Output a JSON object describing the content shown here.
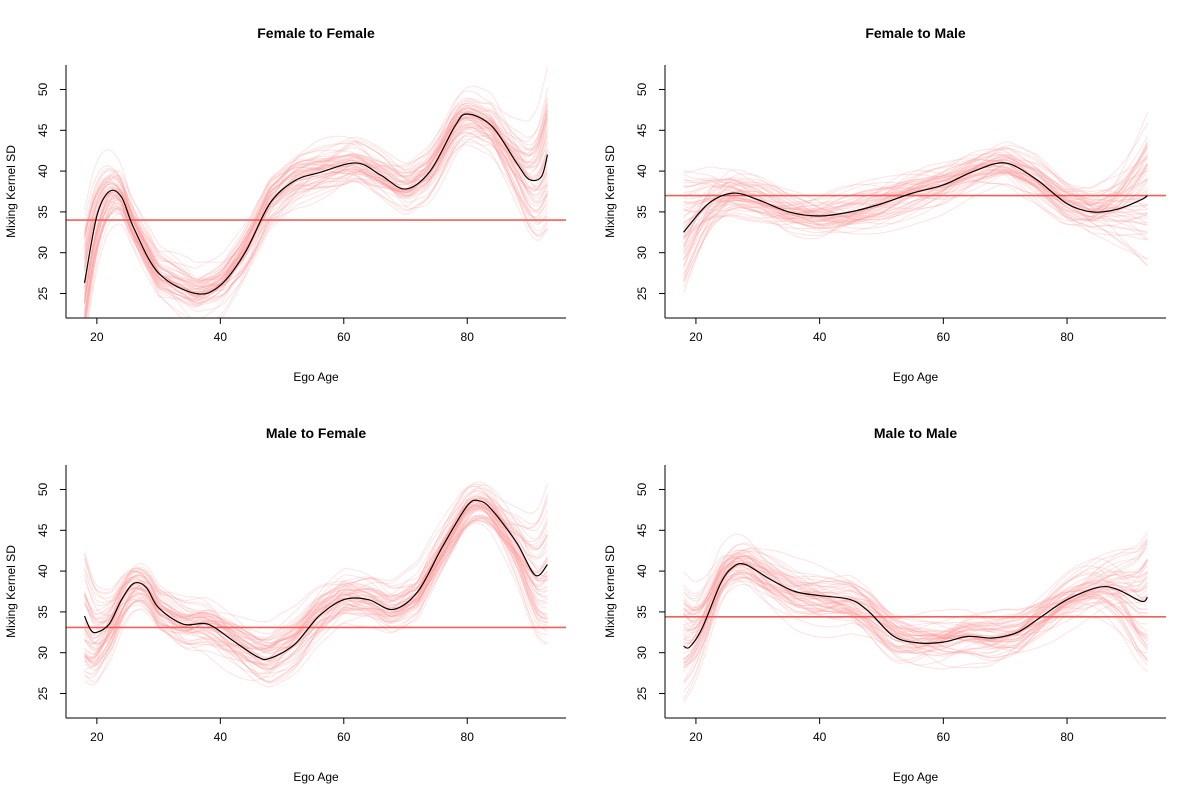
{
  "colors": {
    "sample_curve": "#ff9999",
    "mean_curve": "#000000",
    "reference_line": "#f0605a",
    "axis": "#000000",
    "background": "#ffffff"
  },
  "chart_data": [
    {
      "type": "line",
      "title": "Female to Female",
      "xlabel": "Ego Age",
      "ylabel": "Mixing Kernel SD",
      "xlim": [
        15,
        96
      ],
      "ylim": [
        22,
        53
      ],
      "xticks": [
        20,
        40,
        60,
        80
      ],
      "yticks": [
        25,
        30,
        35,
        40,
        45,
        50
      ],
      "reference_y": 34,
      "x": [
        18,
        20,
        22,
        24,
        26,
        30,
        36,
        40,
        44,
        48,
        52,
        56,
        62,
        66,
        70,
        74,
        78,
        80,
        84,
        88,
        90,
        92,
        93
      ],
      "mean": [
        26.3,
        34.5,
        37.5,
        36.8,
        33.0,
        27.5,
        25.0,
        26.0,
        30.0,
        36.0,
        38.8,
        39.8,
        41.0,
        39.5,
        37.8,
        40.0,
        45.5,
        47.0,
        45.5,
        41.0,
        39.0,
        39.3,
        42.0
      ],
      "sample_count": 60,
      "sample_spread": 4.0
    },
    {
      "type": "line",
      "title": "Female to Male",
      "xlabel": "Ego Age",
      "ylabel": "Mixing Kernel SD",
      "xlim": [
        15,
        96
      ],
      "ylim": [
        22,
        53
      ],
      "xticks": [
        20,
        40,
        60,
        80
      ],
      "yticks": [
        25,
        30,
        35,
        40,
        45,
        50
      ],
      "reference_y": 37,
      "x": [
        18,
        22,
        26,
        30,
        35,
        40,
        45,
        50,
        55,
        60,
        65,
        70,
        75,
        80,
        84,
        88,
        92,
        93
      ],
      "mean": [
        32.5,
        36.0,
        37.3,
        36.5,
        35.0,
        34.5,
        35.0,
        36.0,
        37.3,
        38.3,
        40.0,
        41.0,
        39.0,
        36.0,
        35.0,
        35.3,
        36.5,
        37.0
      ],
      "sample_count": 60,
      "sample_spread": 3.5
    },
    {
      "type": "line",
      "title": "Male to Female",
      "xlabel": "Ego Age",
      "ylabel": "Mixing Kernel SD",
      "xlim": [
        15,
        96
      ],
      "ylim": [
        22,
        53
      ],
      "xticks": [
        20,
        40,
        60,
        80
      ],
      "yticks": [
        25,
        30,
        35,
        40,
        45,
        50
      ],
      "reference_y": 33.1,
      "x": [
        18,
        19,
        20,
        22,
        24,
        26,
        28,
        30,
        34,
        38,
        42,
        46,
        48,
        52,
        56,
        60,
        64,
        68,
        72,
        76,
        80,
        82,
        84,
        88,
        91,
        93
      ],
      "mean": [
        34.5,
        32.8,
        32.5,
        33.5,
        36.5,
        38.5,
        38.0,
        35.5,
        33.5,
        33.5,
        31.5,
        29.5,
        29.3,
        31.0,
        34.5,
        36.5,
        36.5,
        35.3,
        37.5,
        43.0,
        48.0,
        48.6,
        47.5,
        43.5,
        39.5,
        40.8
      ],
      "sample_count": 60,
      "sample_spread": 4.0
    },
    {
      "type": "line",
      "title": "Male to Male",
      "xlabel": "Ego Age",
      "ylabel": "Mixing Kernel SD",
      "xlim": [
        15,
        96
      ],
      "ylim": [
        22,
        53
      ],
      "xticks": [
        20,
        40,
        60,
        80
      ],
      "yticks": [
        25,
        30,
        35,
        40,
        45,
        50
      ],
      "reference_y": 34.4,
      "x": [
        18,
        19,
        21,
        24,
        26,
        28,
        32,
        36,
        40,
        45,
        48,
        52,
        56,
        60,
        64,
        68,
        72,
        76,
        80,
        85,
        88,
        92,
        93
      ],
      "mean": [
        30.8,
        30.7,
        33.0,
        38.5,
        40.5,
        40.8,
        39.0,
        37.5,
        37.0,
        36.5,
        35.0,
        32.0,
        31.2,
        31.3,
        32.0,
        31.8,
        32.5,
        34.5,
        36.5,
        38.0,
        37.8,
        36.3,
        36.8
      ],
      "sample_count": 60,
      "sample_spread": 3.5
    }
  ]
}
